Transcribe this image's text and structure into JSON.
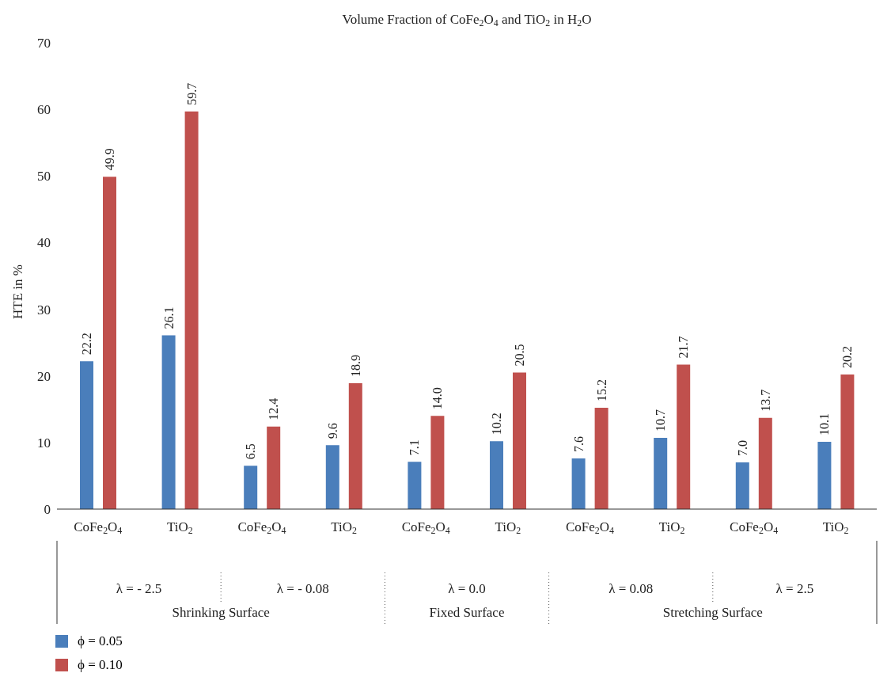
{
  "chart_data": {
    "type": "bar",
    "title": "Volume Fraction of CoFe$_{2}$O$_{4}$ and TiO$_{2}$ in H$_{2}$O",
    "ylabel": "HTE in %",
    "categories": [
      "CoFe$_{2}$O$_{4}$",
      "TiO$_{2}$",
      "CoFe$_{2}$O$_{4}$",
      "TiO$_{2}$",
      "CoFe$_{2}$O$_{4}$",
      "TiO$_{2}$",
      "CoFe$_{2}$O$_{4}$",
      "TiO$_{2}$",
      "CoFe$_{2}$O$_{4}$",
      "TiO$_{2}$"
    ],
    "series": [
      {
        "name": "ϕ = 0.05",
        "color": "#4a7ebb",
        "values": [
          22.2,
          26.1,
          6.5,
          9.6,
          7.1,
          10.2,
          7.6,
          10.7,
          7.0,
          10.1
        ],
        "value_labels": [
          "22.2",
          "26.1",
          "6.5",
          "9.6",
          "7.1",
          "10.2",
          "7.6",
          "10.7",
          "7.0",
          "10.1"
        ]
      },
      {
        "name": "ϕ = 0.10",
        "color": "#c0504d",
        "values": [
          49.9,
          59.7,
          12.4,
          18.9,
          14.0,
          20.5,
          15.2,
          21.7,
          13.7,
          20.2
        ],
        "value_labels": [
          "49.9",
          "59.7",
          "12.4",
          "18.9",
          "14.0",
          "20.5",
          "15.2",
          "21.7",
          "13.7",
          "20.2"
        ]
      }
    ],
    "annotations": [
      "λ = - 2.5",
      "λ = - 0.08",
      "λ = 0.0",
      "λ = 0.08",
      "λ = 2.5",
      "Shrinking Surface",
      "Fixed Surface",
      "Stretching Surface"
    ],
    "ylim": [
      0,
      70
    ],
    "yticks": [
      0,
      10,
      20,
      30,
      40,
      50,
      60,
      70
    ],
    "grid": false,
    "legend": "bottom left"
  }
}
